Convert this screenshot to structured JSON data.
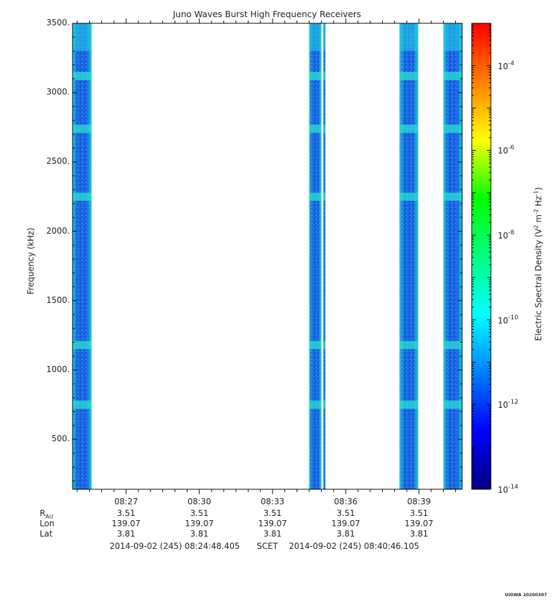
{
  "chart_data": {
    "type": "heatmap",
    "title": "Juno Waves Burst High Frequency Receivers",
    "ylabel": "Frequency (kHz)",
    "ylim": [
      140,
      3500
    ],
    "y_ticks": [
      "500.",
      "1000.",
      "1500.",
      "2000.",
      "2500.",
      "3000.",
      "3500."
    ],
    "x_ticks": [
      "08:27",
      "08:30",
      "08:33",
      "08:36",
      "08:39"
    ],
    "x_range": [
      "08:24:48.405",
      "08:40:46.105"
    ],
    "data_intervals": [
      {
        "start": "08:24:48",
        "end": "08:25:35"
      },
      {
        "start": "08:34:30",
        "end": "08:35:00"
      },
      {
        "start": "08:35:05",
        "end": "08:35:10"
      },
      {
        "start": "08:38:12",
        "end": "08:38:58"
      },
      {
        "start": "08:40:00",
        "end": "08:40:46"
      }
    ],
    "enhanced_bands_khz": [
      3120,
      2740,
      2250,
      1180,
      750
    ],
    "colorbar": {
      "label": "Electric Spectral Density (V² m⁻² Hz⁻¹)",
      "scale": "log",
      "range": [
        "1e-14",
        "1e-3"
      ],
      "ticks": [
        "10-4",
        "10-6",
        "10-8",
        "10-10",
        "10-12",
        "10-14"
      ]
    }
  },
  "ephemeris": {
    "labels": {
      "r_main": "R",
      "r_sub": "AU",
      "lon": "Lon",
      "lat": "Lat"
    },
    "values": {
      "r": [
        "3.51",
        "3.51",
        "3.51",
        "3.51",
        "3.51"
      ],
      "lon": [
        "139.07",
        "139.07",
        "139.07",
        "139.07",
        "139.07"
      ],
      "lat": [
        "3.81",
        "3.81",
        "3.81",
        "3.81",
        "3.81"
      ]
    }
  },
  "footer": {
    "start": "2014-09-02 (245) 08:24:48.405",
    "frame": "SCET",
    "end": "2014-09-02 (245) 08:40:46.105"
  },
  "stamp": "UIOWA 20200307",
  "colors": {
    "background": "#ffffff",
    "axis": "#000000"
  }
}
